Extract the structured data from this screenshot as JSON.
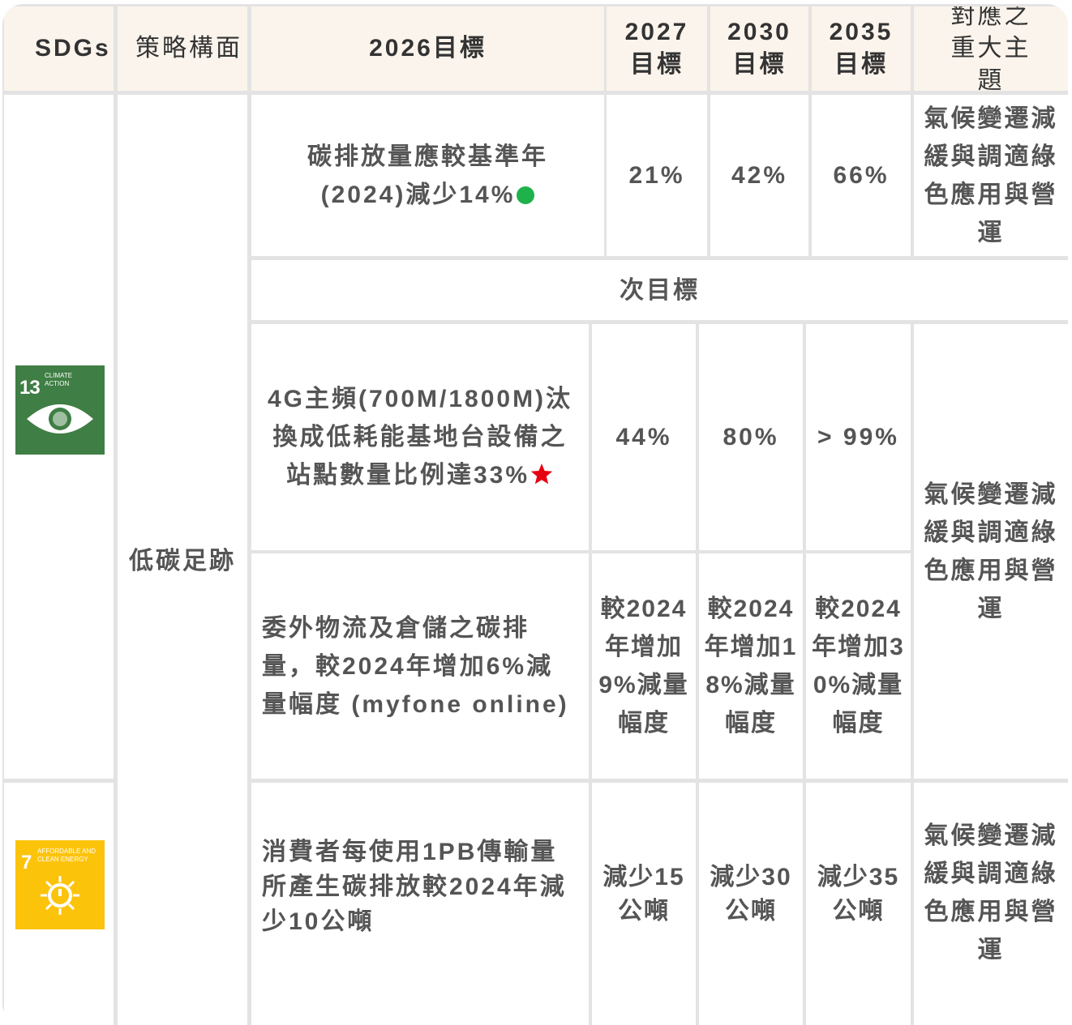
{
  "header": [
    "SDGs",
    "策略構面",
    "2026目標",
    "2027目標",
    "2030目標",
    "2035目標",
    "對應之重大主題"
  ],
  "sdgs": [
    {
      "number": "13",
      "label": "CLIMATE ACTION"
    },
    {
      "number": "7",
      "label": "AFFORDABLE AND CLEAN ENERGY"
    }
  ],
  "strategy": "低碳足跡",
  "main_goal": {
    "goal": "碳排放量應較基準年(2024)減少14%",
    "targets": [
      "21%",
      "42%",
      "66%"
    ],
    "topic": "氣候變遷減緩與調適綠色應用與營運"
  },
  "sub_goal_label": "次目標",
  "sub_goals": [
    {
      "goal": "4G主頻(700M/1800M)汰換成低耗能基地台設備之站點數量比例達33%",
      "targets": [
        "44%",
        "80%",
        "> 99%"
      ]
    },
    {
      "goal": "委外物流及倉儲之碳排量，較2024年增加6%減量幅度 (myfone online)",
      "targets": [
        "較2024年增加9%減量幅度",
        "較2024年增加18%減量幅度",
        "較2024年增加30%減量幅度"
      ]
    },
    {
      "goal": "消費者每使用1PB傳輸量所產生碳排放較2024年減少10公噸",
      "targets": [
        "減少15公噸",
        "減少30公噸",
        "減少35公噸"
      ]
    }
  ],
  "sub_topics": [
    "氣候變遷減緩與調適綠色應用與營運",
    "氣候變遷減緩與調適綠色應用與營運"
  ]
}
